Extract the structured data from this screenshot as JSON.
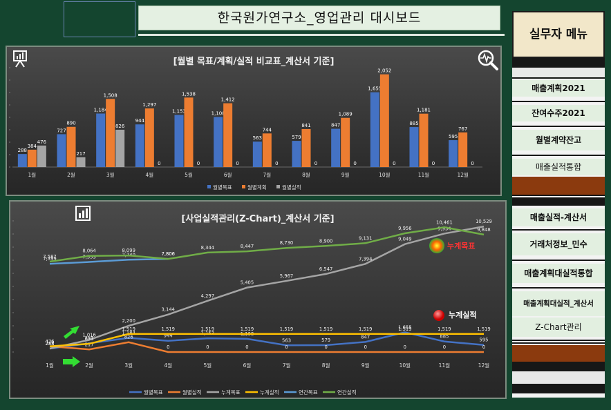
{
  "header": {
    "title": "한국원가연구소_영업관리 대시보드"
  },
  "chart_data": [
    {
      "type": "bar",
      "title": "[월별 목표/계획/실적 비교표_계산서 기준]",
      "categories": [
        "1월",
        "2월",
        "3월",
        "4월",
        "5월",
        "6월",
        "7월",
        "8월",
        "9월",
        "10월",
        "11월",
        "12월"
      ],
      "series": [
        {
          "name": "월별목표",
          "color": "#4472c4",
          "values": [
            288,
            727,
            1184,
            944,
            1153,
            1108,
            563,
            579,
            847,
            1655,
            885,
            595
          ]
        },
        {
          "name": "월별계획",
          "color": "#ed7d31",
          "values": [
            384,
            890,
            1508,
            1297,
            1538,
            1412,
            744,
            841,
            1089,
            2052,
            1181,
            767
          ]
        },
        {
          "name": "월별실적",
          "color": "#a5a5a5",
          "values": [
            476,
            217,
            826,
            0,
            0,
            0,
            0,
            0,
            0,
            0,
            0,
            0
          ]
        }
      ],
      "ylim": [
        0,
        2200
      ],
      "legend": "bottom"
    },
    {
      "type": "line",
      "title": "[사업실적관리(Z-Chart)_계산서 기준]",
      "categories": [
        "1월",
        "2월",
        "3월",
        "4월",
        "5월",
        "6월",
        "7월",
        "8월",
        "9월",
        "10월",
        "11월",
        "12월"
      ],
      "series": [
        {
          "name": "월별목표",
          "color": "#4472c4",
          "values": [
            288,
            727,
            1184,
            944,
            1153,
            1108,
            563,
            579,
            847,
            1655,
            885,
            595
          ]
        },
        {
          "name": "월별실적",
          "color": "#ed7d31",
          "values": [
            476,
            217,
            826,
            0,
            0,
            0,
            0,
            0,
            0,
            0,
            0,
            0
          ]
        },
        {
          "name": "누계목표",
          "color": "#a5a5a5",
          "values": [
            288,
            1016,
            2200,
            3144,
            4297,
            5405,
            5967,
            6547,
            7394,
            9049,
            9934,
            10529
          ]
        },
        {
          "name": "누계실적",
          "color": "#ffc000",
          "values": [
            476,
            693,
            1519,
            1519,
            1519,
            1519,
            1519,
            1519,
            1519,
            1519,
            1519,
            1519
          ]
        },
        {
          "name": "연간목표",
          "color": "#5b9bd5",
          "values": [
            7399,
            7553,
            7740,
            7806,
            null,
            null,
            null,
            null,
            null,
            null,
            null,
            null
          ]
        },
        {
          "name": "연간실적",
          "color": "#70ad47",
          "values": [
            7587,
            8064,
            8099,
            7806,
            8344,
            8447,
            8730,
            8900,
            9131,
            9956,
            10461,
            9848
          ]
        }
      ],
      "annotations": {
        "target_label": "누계목표",
        "actual_label": "누계실적"
      },
      "legend": "bottom"
    }
  ],
  "sidebar": {
    "header": "실무자 메뉴",
    "items": [
      {
        "label": "매출계획2021"
      },
      {
        "label": "잔여수주2021"
      },
      {
        "label": "월별계약잔고"
      },
      {
        "label": "매출실적통합"
      },
      {
        "label": "매출실적-계산서"
      },
      {
        "label": "거래처정보_민수"
      },
      {
        "label": "매출계획대실적통합"
      },
      {
        "label": "매출계획대실적_계산서"
      },
      {
        "label": "Z-Chart관리"
      }
    ]
  }
}
